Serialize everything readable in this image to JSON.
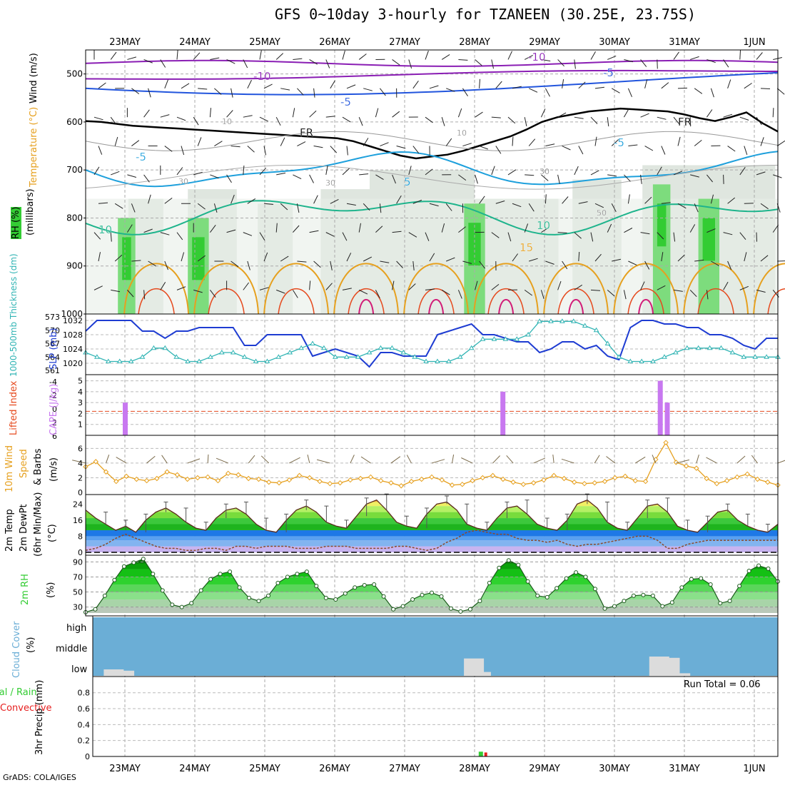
{
  "title": "GFS 0~10day 3-hourly for TZANEEN (30.25E, 23.75S)",
  "credit": "GrADS: COLA/IGES",
  "date_labels": [
    "23MAY",
    "24MAY",
    "25MAY",
    "26MAY",
    "27MAY",
    "28MAY",
    "29MAY",
    "30MAY",
    "31MAY",
    "1JUN"
  ],
  "colors": {
    "rh_green": "#33cc33",
    "rh_grey": "#b8c4b8",
    "temp_purple": "#8a1eb4",
    "temp_blue": "#2255dd",
    "temp_cyan": "#1ea0dc",
    "temp_teal": "#1eb48c",
    "temp_orange": "#e6a01e",
    "temp_red": "#e64a1e",
    "temp_magenta": "#d21e78",
    "slp": "#1e3cd2",
    "thickness": "#30b4b4",
    "cape": "#c878f0",
    "wind_speed": "#e6a01e",
    "cloud": "#6baed6",
    "precip_total": "#33cc33",
    "precip_conv": "#e61e1e"
  },
  "panel_labels": {
    "upper": {
      "wind": "Wind (m/s)",
      "temperature": "Temperature (°C)",
      "rh": "RH (%)",
      "pressure": "(millibars)"
    },
    "slp": {
      "slp": "SLP (mb)",
      "thickness": "1000-500mb Thickness (dm)"
    },
    "cape": {
      "lifted": "Lifted Index",
      "cape": "CAPE (J/kg)"
    },
    "wind10": {
      "line1": "10m Wind",
      "line2": "Speed",
      "line3": "& Barbs",
      "unit": "(m/s)"
    },
    "temp2m": {
      "line1": "2m Temp",
      "line2": "2m DewPt",
      "line3": "(6hr Min/Max)",
      "unit": "(°C)"
    },
    "rh2m": {
      "line1": "2m RH",
      "unit": "(%)"
    },
    "cloud": {
      "line1": "Cloud Cover",
      "unit": "(%)",
      "high": "high",
      "middle": "middle",
      "low": "low"
    },
    "precip": {
      "line1": "Total / Rain",
      "line2": "Convective",
      "line3": "3hr Precip (mm)"
    }
  },
  "chart_data": [
    {
      "type": "heatmap",
      "name": "upper_air_cross_section",
      "y_ticks": [
        "500",
        "600",
        "700",
        "800",
        "900",
        "1000"
      ],
      "ylim": [
        450,
        1000
      ],
      "contour_labels": [
        "-10",
        "-10",
        "-5",
        "-5",
        "FR",
        "FR",
        "-5",
        "-5",
        "5",
        "10",
        "10",
        "15",
        "30",
        "30",
        "30",
        "50",
        "10",
        "10"
      ],
      "freezing_level_mb": [
        598,
        600,
        604,
        608,
        610,
        612,
        614,
        616,
        618,
        620,
        622,
        624,
        626,
        628,
        630,
        632,
        634,
        640,
        650,
        660,
        670,
        676,
        672,
        668,
        660,
        650,
        640,
        630,
        616,
        600,
        590,
        584,
        578,
        575,
        572,
        574,
        576,
        578,
        584,
        592,
        598,
        590,
        580,
        602,
        620
      ]
    },
    {
      "type": "line",
      "name": "slp_thickness",
      "slp_mb": [
        1029,
        1032,
        1032,
        1032,
        1032,
        1029,
        1029,
        1027,
        1029,
        1029,
        1030,
        1030,
        1030,
        1030,
        1025,
        1025,
        1028,
        1028,
        1028,
        1028,
        1022,
        1023,
        1024,
        1023,
        1022,
        1019,
        1023,
        1023,
        1022,
        1022,
        1022,
        1028,
        1029,
        1030,
        1031,
        1028,
        1028,
        1027,
        1026,
        1026,
        1023,
        1024,
        1026,
        1026,
        1024,
        1025,
        1022,
        1021,
        1030,
        1032,
        1032,
        1031,
        1031,
        1030,
        1030,
        1028,
        1028,
        1027,
        1025,
        1024,
        1027,
        1027
      ],
      "thickness_dm": [
        565,
        564,
        563,
        563,
        563,
        564,
        566,
        566,
        564,
        563,
        563,
        564,
        565,
        565,
        564,
        563,
        563,
        564,
        565,
        566,
        567,
        566,
        564,
        564,
        564,
        565,
        566,
        566,
        565,
        564,
        563,
        563,
        563,
        564,
        566,
        568,
        568,
        568,
        568,
        569,
        572,
        572,
        572,
        572,
        571,
        570,
        567,
        564,
        563,
        563,
        563,
        564,
        565,
        566,
        566,
        566,
        566,
        565,
        564,
        564,
        564,
        564
      ],
      "slp_ticks": [
        "1032",
        "1028",
        "1024",
        "1020"
      ],
      "thickness_ticks": [
        "573",
        "570",
        "567",
        "564",
        "561"
      ]
    },
    {
      "type": "bar",
      "name": "cape_lifted_index",
      "cape_ticks": [
        "5",
        "4",
        "3",
        "2",
        "1"
      ],
      "li_ticks": [
        "-4",
        "-2",
        "0",
        "2",
        "6"
      ],
      "bars": [
        {
          "day": 0.0,
          "cape": 3
        },
        {
          "day": 5.4,
          "cape": 4
        },
        {
          "day": 7.65,
          "cape": 5
        },
        {
          "day": 7.75,
          "cape": 3
        }
      ]
    },
    {
      "type": "line",
      "name": "wind10m",
      "ticks": [
        "6",
        "4",
        "2",
        "0"
      ],
      "speed_ms": [
        3.5,
        4.2,
        2.8,
        1.5,
        2.2,
        1.8,
        1.6,
        1.9,
        2.8,
        2.4,
        1.8,
        2.0,
        2.1,
        1.6,
        2.6,
        2.4,
        1.9,
        1.8,
        1.4,
        1.3,
        1.7,
        2.3,
        2.0,
        1.5,
        1.2,
        1.3,
        1.7,
        1.9,
        2.1,
        1.6,
        1.3,
        0.9,
        1.5,
        1.8,
        2.1,
        1.7,
        1.0,
        1.1,
        1.6,
        2.0,
        2.3,
        1.8,
        1.4,
        1.1,
        1.3,
        1.7,
        2.3,
        1.9,
        1.4,
        1.2,
        1.3,
        1.5,
        2.0,
        2.2,
        1.6,
        1.5,
        4.5,
        6.8,
        4.1,
        3.6,
        3.3,
        1.9,
        1.2,
        1.6,
        2.1,
        2.5,
        1.8,
        1.4,
        1.0
      ]
    },
    {
      "type": "area",
      "name": "temp2m",
      "ticks": [
        "24",
        "16",
        "8",
        "0"
      ],
      "temp_c": [
        21,
        17,
        14,
        11,
        13,
        10,
        16,
        20,
        22,
        19,
        15,
        12,
        11,
        17,
        21,
        22,
        19,
        14,
        11,
        10,
        16,
        21,
        23,
        20,
        15,
        13,
        12,
        18,
        24,
        26,
        21,
        15,
        13,
        12,
        19,
        24,
        25,
        21,
        14,
        12,
        11,
        17,
        22,
        23,
        19,
        14,
        12,
        11,
        16,
        24,
        26,
        22,
        15,
        12,
        11,
        17,
        23,
        24,
        20,
        13,
        11,
        10,
        15,
        20,
        21,
        16,
        13,
        11,
        10,
        14
      ],
      "dewpt_c": [
        1,
        2,
        4,
        7,
        9,
        7,
        5,
        3,
        2,
        2,
        1,
        1,
        2,
        2,
        1,
        3,
        3,
        2,
        3,
        3,
        3,
        2,
        2,
        2,
        3,
        3,
        3,
        2,
        2,
        2,
        2,
        3,
        3,
        2,
        1,
        2,
        5,
        7,
        10,
        11,
        10,
        9,
        9,
        7,
        6,
        6,
        5,
        6,
        4,
        3,
        4,
        4,
        5,
        6,
        7,
        8,
        8,
        6,
        2,
        2,
        4,
        5,
        6,
        6,
        6,
        6,
        6,
        6,
        6,
        6
      ]
    },
    {
      "type": "area",
      "name": "rh2m",
      "ticks": [
        "90",
        "70",
        "50",
        "30"
      ],
      "rh_pct": [
        23,
        27,
        45,
        66,
        84,
        89,
        94,
        74,
        52,
        33,
        30,
        35,
        52,
        67,
        74,
        77,
        56,
        42,
        38,
        45,
        62,
        70,
        74,
        77,
        58,
        42,
        40,
        48,
        56,
        59,
        60,
        44,
        27,
        31,
        40,
        46,
        49,
        44,
        28,
        24,
        27,
        38,
        62,
        82,
        92,
        86,
        64,
        45,
        43,
        55,
        68,
        76,
        70,
        54,
        28,
        31,
        38,
        45,
        46,
        45,
        31,
        36,
        56,
        67,
        68,
        60,
        35,
        38,
        58,
        78,
        85,
        81,
        64
      ]
    },
    {
      "type": "bar",
      "name": "cloud_cover",
      "levels": [
        "high",
        "middle",
        "low"
      ],
      "low_cover_pct": [
        {
          "day": -0.2,
          "pct": 10
        },
        {
          "day": -0.05,
          "pct": 8
        },
        {
          "day": 4.95,
          "pct": 27
        },
        {
          "day": 5.05,
          "pct": 6
        },
        {
          "day": 7.6,
          "pct": 30
        },
        {
          "day": 7.75,
          "pct": 28
        },
        {
          "day": 7.9,
          "pct": 4
        }
      ]
    },
    {
      "type": "bar",
      "name": "precip_3hr",
      "ticks": [
        "0.8",
        "0.6",
        "0.4",
        "0.2",
        "0"
      ],
      "ylim": [
        0,
        0.95
      ],
      "total_mm": [
        {
          "day": 5.1,
          "value": 0.06
        }
      ],
      "convective_mm": [
        {
          "day": 5.15,
          "value": 0.05
        }
      ],
      "run_total": "Run Total = 0.06"
    }
  ]
}
